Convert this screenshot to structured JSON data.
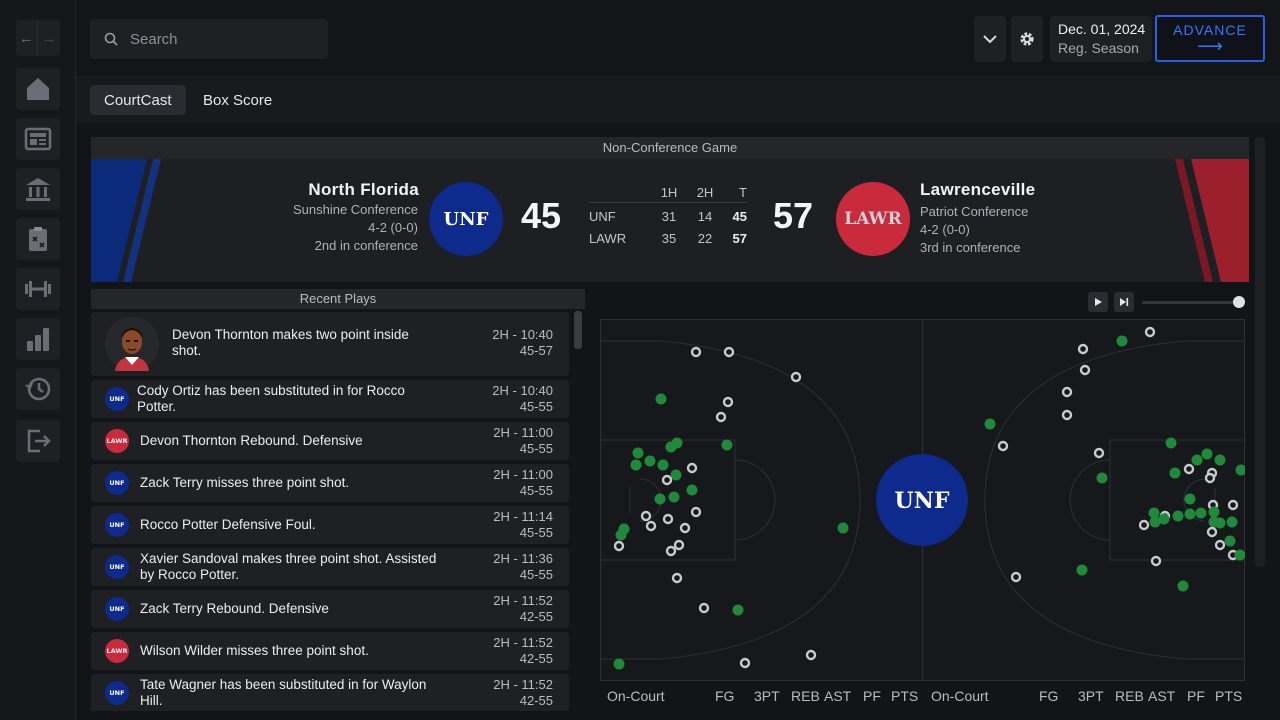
{
  "nav": {
    "back_icon": "arrow-left-icon",
    "forward_icon": "arrow-right-icon",
    "items": [
      "home-icon",
      "news-icon",
      "bank-icon",
      "clipboard-icon",
      "barbell-icon",
      "stats-icon",
      "history-icon",
      "exit-icon"
    ]
  },
  "search": {
    "placeholder": "Search",
    "value": ""
  },
  "header": {
    "date": "Dec. 01, 2024",
    "season": "Reg. Season",
    "advance_label": "ADVANCE",
    "advance_arrow": "⟶"
  },
  "tabs": [
    {
      "label": "CourtCast",
      "active": true
    },
    {
      "label": "Box Score",
      "active": false
    }
  ],
  "game": {
    "type": "Non-Conference Game",
    "home": {
      "name": "North Florida",
      "conference": "Sunshine Conference",
      "record": "4-2 (0-0)",
      "standing": "2nd in conference",
      "abbr": "UNF",
      "score": "45",
      "color": "#0d2a8c"
    },
    "away": {
      "name": "Lawrenceville",
      "conference": "Patriot Conference",
      "record": "4-2 (0-0)",
      "standing": "3rd in conference",
      "abbr": "LAWR",
      "score": "57",
      "color": "#c92b3c"
    },
    "linescore": {
      "headers": [
        "",
        "1H",
        "2H",
        "T"
      ],
      "rows": [
        [
          "UNF",
          "31",
          "14",
          "45"
        ],
        [
          "LAWR",
          "35",
          "22",
          "57"
        ]
      ]
    }
  },
  "recent_plays": {
    "title": "Recent Plays",
    "items": [
      {
        "team": "player",
        "text": "Devon Thornton makes two point inside shot.",
        "time": "2H - 10:40",
        "score": "45-57"
      },
      {
        "team": "UNF",
        "text": "Cody Ortiz has been substituted in for Rocco Potter.",
        "time": "2H - 10:40",
        "score": "45-55"
      },
      {
        "team": "LAWR",
        "text": "Devon Thornton Rebound. Defensive",
        "time": "2H - 11:00",
        "score": "45-55"
      },
      {
        "team": "UNF",
        "text": "Zack Terry misses three point shot.",
        "time": "2H - 11:00",
        "score": "45-55"
      },
      {
        "team": "UNF",
        "text": "Rocco Potter Defensive Foul.",
        "time": "2H - 11:14",
        "score": "45-55"
      },
      {
        "team": "UNF",
        "text": "Xavier Sandoval makes three point shot. Assisted by Rocco Potter.",
        "time": "2H - 11:36",
        "score": "45-55"
      },
      {
        "team": "UNF",
        "text": "Zack Terry Rebound. Defensive",
        "time": "2H - 11:52",
        "score": "42-55"
      },
      {
        "team": "LAWR",
        "text": "Wilson Wilder misses three point shot.",
        "time": "2H - 11:52",
        "score": "42-55"
      },
      {
        "team": "UNF",
        "text": "Tate Wagner has been substituted in for Waylon Hill.",
        "time": "2H - 11:52",
        "score": "42-55"
      }
    ]
  },
  "court": {
    "center_logo": "UNF",
    "stat_headers_left": [
      "On-Court",
      "FG",
      "3PT",
      "REB",
      "AST",
      "PF",
      "PTS"
    ],
    "stat_headers_right": [
      "On-Court",
      "FG",
      "3PT",
      "REB",
      "AST",
      "PF",
      "PTS"
    ],
    "made_color": "#1f8a3a",
    "missed_color": "#c9cbd0"
  }
}
